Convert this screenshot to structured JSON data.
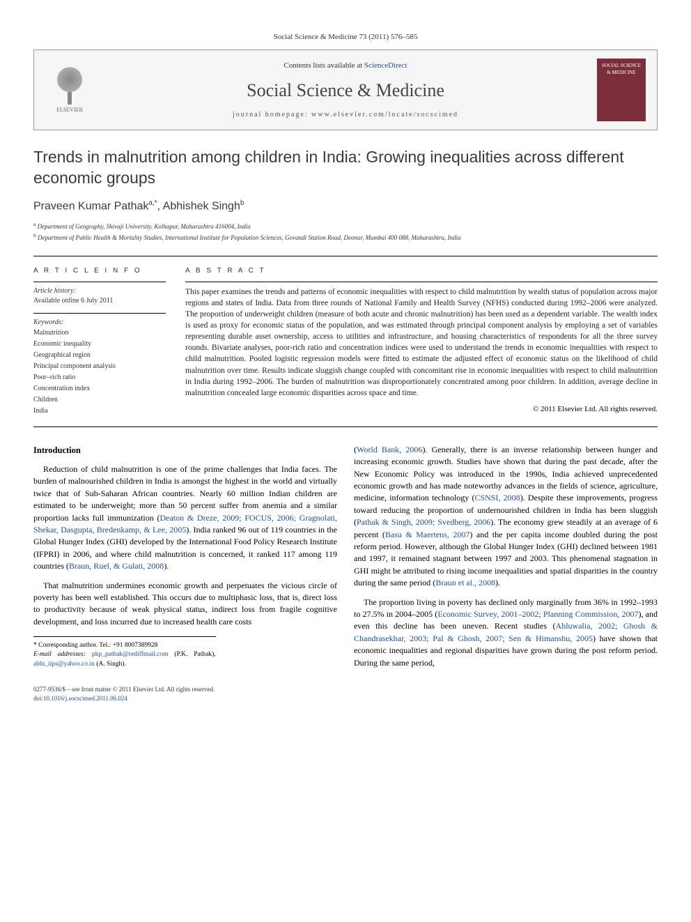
{
  "citation": "Social Science & Medicine 73 (2011) 576–585",
  "header": {
    "contents_prefix": "Contents lists available at ",
    "contents_link": "ScienceDirect",
    "journal": "Social Science & Medicine",
    "homepage_prefix": "journal homepage: ",
    "homepage_url": "www.elsevier.com/locate/socscimed",
    "publisher": "ELSEVIER",
    "cover_text": "SOCIAL SCIENCE & MEDICINE"
  },
  "article": {
    "title": "Trends in malnutrition among children in India: Growing inequalities across different economic groups",
    "authors_html": "Praveen Kumar Pathak",
    "author1_sup": "a,*",
    "author2": ", Abhishek Singh",
    "author2_sup": "b",
    "affiliations": {
      "a": "Department of Geography, Shivaji University, Kolhapur, Maharashtra 416004, India",
      "b": "Department of Public Health & Mortality Studies, International Institute for Population Sciences, Govandi Station Road, Deonar, Mumbai 400 088, Maharashtra, India"
    }
  },
  "info": {
    "heading": "A R T I C L E  I N F O",
    "history_label": "Article history:",
    "history_text": "Available online 6 July 2011",
    "keywords_label": "Keywords:",
    "keywords": [
      "Malnutrition",
      "Economic inequality",
      "Geographical region",
      "Principal component analysis",
      "Poor–rich ratio",
      "Concentration index",
      "Children",
      "India"
    ]
  },
  "abstract": {
    "heading": "A B S T R A C T",
    "text": "This paper examines the trends and patterns of economic inequalities with respect to child malnutrition by wealth status of population across major regions and states of India. Data from three rounds of National Family and Health Survey (NFHS) conducted during 1992–2006 were analyzed. The proportion of underweight children (measure of both acute and chronic malnutrition) has been used as a dependent variable. The wealth index is used as proxy for economic status of the population, and was estimated through principal component analysis by employing a set of variables representing durable asset ownership, access to utilities and infrastructure, and housing characteristics of respondents for all the three survey rounds. Bivariate analyses, poor-rich ratio and concentration indices were used to understand the trends in economic inequalities with respect to child malnutrition. Pooled logistic regression models were fitted to estimate the adjusted effect of economic status on the likelihood of child malnutrition over time. Results indicate sluggish change coupled with concomitant rise in economic inequalities with respect to child malnutrition in India during 1992–2006. The burden of malnutrition was disproportionately concentrated among poor children. In addition, average decline in malnutrition concealed large economic disparities across space and time.",
    "copyright": "© 2011 Elsevier Ltd. All rights reserved."
  },
  "body": {
    "intro_heading": "Introduction",
    "p1_a": "Reduction of child malnutrition is one of the prime challenges that India faces. The burden of malnourished children in India is amongst the highest in the world and virtually twice that of Sub-Saharan African countries. Nearly 60 million Indian children are estimated to be underweight; more than 50 percent suffer from anemia and a similar proportion lacks full immunization (",
    "p1_ref1": "Deaton & Dreze, 2009; FOCUS, 2006; Gragnolati, Shekar, Dasgupta, Bredenkamp, & Lee, 2005",
    "p1_b": "). India ranked 96 out of 119 countries in the Global Hunger Index (GHI) developed by the International Food Policy Research Institute (IFPRI) in 2006, and where child malnutrition is concerned, it ranked 117 among 119 countries (",
    "p1_ref2": "Braun, Ruel, & Gulati, 2008",
    "p1_c": ").",
    "p2": "That malnutrition undermines economic growth and perpetuates the vicious circle of poverty has been well established. This occurs due to multiphasic loss, that is, direct loss to productivity because of weak physical status, indirect loss from fragile cognitive development, and loss incurred due to increased health care costs",
    "p3_a": "(",
    "p3_ref1": "World Bank, 2006",
    "p3_b": "). Generally, there is an inverse relationship between hunger and increasing economic growth. Studies have shown that during the past decade, after the New Economic Policy was introduced in the 1990s, India achieved unprecedented economic growth and has made noteworthy advances in the fields of science, agriculture, medicine, information technology (",
    "p3_ref2": "CSNSI, 2008",
    "p3_c": "). Despite these improvements, progress toward reducing the proportion of undernourished children in India has been sluggish (",
    "p3_ref3": "Pathak & Singh, 2009; Svedberg, 2006",
    "p3_d": "). The economy grew steadily at an average of 6 percent (",
    "p3_ref4": "Basu & Maertens, 2007",
    "p3_e": ") and the per capita income doubled during the post reform period. However, although the Global Hunger Index (GHI) declined between 1981 and 1997, it remained stagnant between 1997 and 2003. This phenomenal stagnation in GHI might be attributed to rising income inequalities and spatial disparities in the country during the same period (",
    "p3_ref5": "Braun et al., 2008",
    "p3_f": ").",
    "p4_a": "The proportion living in poverty has declined only marginally from 36% in 1992–1993 to 27.5% in 2004–2005 (",
    "p4_ref1": "Economic Survey, 2001–2002; Planning Commission, 2007",
    "p4_b": "), and even this decline has been uneven. Recent studies (",
    "p4_ref2": "Ahluwalia, 2002; Ghosh & Chandrasekhar, 2003; Pal & Ghosh, 2007; Sen & Himanshu, 2005",
    "p4_c": ") have shown that economic inequalities and regional disparities have grown during the post reform period. During the same period,"
  },
  "footnote": {
    "corr_label": "* Corresponding author. Tel.: +91 8007389928",
    "email_label": "E-mail addresses:",
    "email1": "pkp_pathak@rediffmail.com",
    "email1_who": " (P.K. Pathak), ",
    "email2": "abhi_iips@yahoo.co.in",
    "email2_who": " (A. Singh)."
  },
  "footer": {
    "issn": "0277-9536/$ – see front matter © 2011 Elsevier Ltd. All rights reserved.",
    "doi_label": "doi:",
    "doi": "10.1016/j.socscimed.2011.06.024"
  },
  "colors": {
    "link": "#1a4f9c",
    "cover_bg": "#7b2d3a",
    "text": "#000000",
    "heading_gray": "#3a3a3a"
  }
}
